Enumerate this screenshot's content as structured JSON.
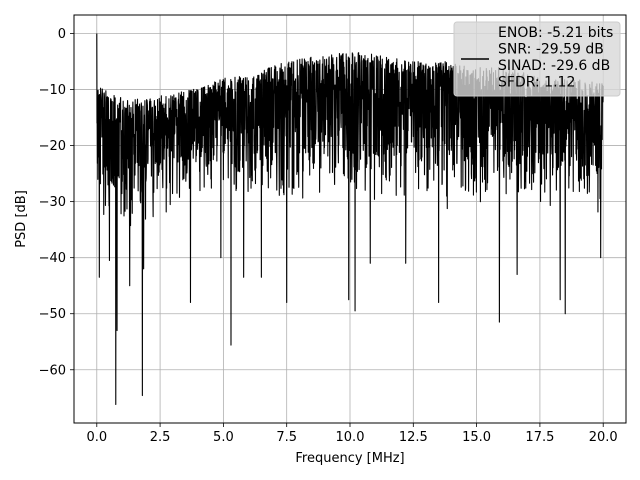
{
  "chart_data": {
    "type": "line",
    "title": "",
    "xlabel": "Frequency [MHz]",
    "ylabel": "PSD [dB]",
    "xlim": [
      -0.9,
      20.9
    ],
    "ylim": [
      -69.5,
      3.3
    ],
    "xticks": [
      0.0,
      2.5,
      5.0,
      7.5,
      10.0,
      12.5,
      15.0,
      17.5,
      20.0
    ],
    "xtick_labels": [
      "0.0",
      "2.5",
      "5.0",
      "7.5",
      "10.0",
      "12.5",
      "15.0",
      "17.5",
      "20.0"
    ],
    "yticks": [
      0,
      -10,
      -20,
      -30,
      -40,
      -50,
      -60
    ],
    "ytick_labels": [
      "0",
      "−10",
      "−20",
      "−30",
      "−40",
      "−50",
      "−60"
    ],
    "grid": true,
    "legend_position": "top-right",
    "legend_lines": [
      "ENOB: -5.21 bits",
      "SNR: -29.59 dB",
      "SINAD: -29.6 dB",
      "SFDR: 1.12"
    ],
    "series": [
      {
        "color": "#000000",
        "x_range": [
          0,
          20
        ],
        "peak_at_dc": 0,
        "upper_envelope_values": [
          -9,
          -12,
          -11,
          -10,
          -8,
          -7,
          -5,
          -4,
          -3,
          -4,
          -5,
          -5,
          -6,
          -6,
          -8,
          -8,
          -9
        ],
        "lower_envelope_values": [
          -35,
          -35,
          -33,
          -30,
          -30,
          -30,
          -32,
          -30,
          -30,
          -30,
          -30,
          -32,
          -32,
          -30,
          -31,
          -32,
          -33
        ],
        "notable_dips": [
          {
            "x": 0.1,
            "y": -43.5
          },
          {
            "x": 0.5,
            "y": -40.5
          },
          {
            "x": 0.75,
            "y": -66.2
          },
          {
            "x": 0.8,
            "y": -53
          },
          {
            "x": 1.3,
            "y": -45
          },
          {
            "x": 1.8,
            "y": -64.6
          },
          {
            "x": 1.85,
            "y": -42
          },
          {
            "x": 3.7,
            "y": -48
          },
          {
            "x": 4.9,
            "y": -40
          },
          {
            "x": 5.3,
            "y": -55.6
          },
          {
            "x": 5.8,
            "y": -43.5
          },
          {
            "x": 6.5,
            "y": -43.5
          },
          {
            "x": 7.5,
            "y": -48
          },
          {
            "x": 9.95,
            "y": -47.5
          },
          {
            "x": 10.2,
            "y": -49.5
          },
          {
            "x": 10.8,
            "y": -41
          },
          {
            "x": 12.2,
            "y": -41
          },
          {
            "x": 13.5,
            "y": -48
          },
          {
            "x": 15.9,
            "y": -51.5
          },
          {
            "x": 16.6,
            "y": -43
          },
          {
            "x": 18.3,
            "y": -47.5
          },
          {
            "x": 18.5,
            "y": -50
          },
          {
            "x": 19.9,
            "y": -40
          }
        ]
      }
    ]
  }
}
